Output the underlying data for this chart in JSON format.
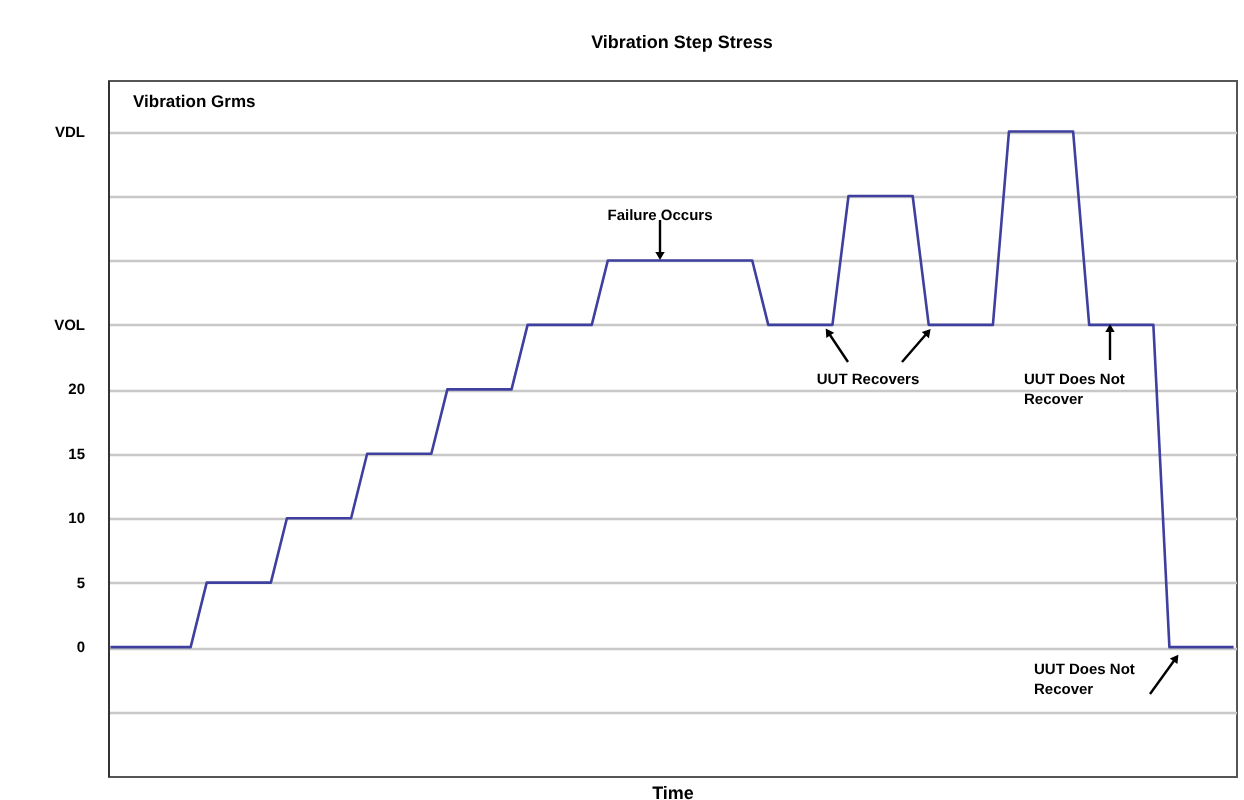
{
  "chart_data": {
    "type": "line",
    "title": "Vibration Step Stress",
    "xlabel": "Time",
    "ylabel": "Vibration Grms",
    "categories": [
      null,
      null,
      null,
      null,
      null,
      null,
      null,
      null,
      null,
      null,
      null,
      null,
      null,
      null,
      null,
      null,
      null,
      null,
      null,
      null,
      null,
      null,
      null,
      null,
      null,
      null,
      null,
      null,
      null,
      null,
      null,
      null,
      null,
      null,
      null,
      null,
      null,
      null,
      null,
      null,
      null,
      null,
      null,
      null,
      null,
      null,
      null,
      null,
      null,
      null,
      null,
      null,
      null,
      null,
      null,
      null,
      null,
      null,
      null,
      null,
      null,
      null,
      null,
      null,
      null,
      null,
      null,
      null,
      null,
      null,
      null
    ],
    "series": [
      {
        "color": "#3f3f9f",
        "values": [
          0,
          0,
          0,
          0,
          0,
          0,
          5,
          5,
          5,
          5,
          5,
          10,
          10,
          10,
          10,
          10,
          15,
          15,
          15,
          15,
          15,
          20,
          20,
          20,
          20,
          20,
          25,
          25,
          25,
          25,
          25,
          30,
          30,
          30,
          30,
          30,
          30,
          30,
          30,
          30,
          30,
          25,
          25,
          25,
          25,
          25,
          35,
          35,
          35,
          35,
          35,
          25,
          25,
          25,
          25,
          25,
          40,
          40,
          40,
          40,
          40,
          25,
          25,
          25,
          25,
          25,
          0,
          0,
          0,
          0,
          0
        ]
      }
    ],
    "ylim": [
      -10,
      44
    ],
    "yticks": [
      {
        "value": -5,
        "label": null
      },
      0,
      5,
      10,
      15,
      20,
      {
        "value": 25,
        "label": "VOL"
      },
      {
        "value": 30,
        "label": null
      },
      {
        "value": 35,
        "label": null
      },
      {
        "value": 40,
        "label": "VDL"
      }
    ],
    "grid": "y",
    "marker": "none",
    "line_style": "solid",
    "annotations": [
      "Failure Occurs",
      "UUT Recovers",
      "UUT Does Not\nRecover",
      "UUT Does Not\nRecover"
    ]
  }
}
